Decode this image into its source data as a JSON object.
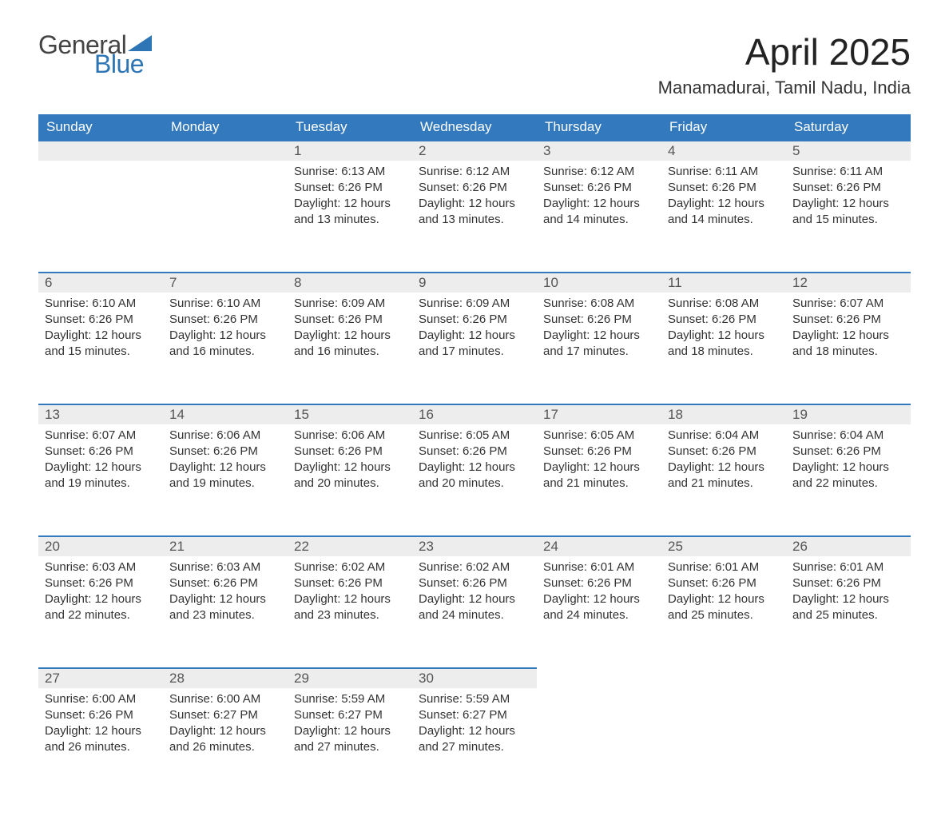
{
  "logo": {
    "word1": "General",
    "word2": "Blue"
  },
  "title": "April 2025",
  "location": "Manamadurai, Tamil Nadu, India",
  "colors": {
    "header_bg": "#3379bd",
    "header_text": "#ffffff",
    "daynum_bg": "#ededed",
    "daynum_border": "#3379bd",
    "text": "#333333",
    "logo_gray": "#444444",
    "logo_blue": "#2e75b6"
  },
  "weekdays": [
    "Sunday",
    "Monday",
    "Tuesday",
    "Wednesday",
    "Thursday",
    "Friday",
    "Saturday"
  ],
  "labels": {
    "sunrise": "Sunrise:",
    "sunset": "Sunset:",
    "daylight": "Daylight:"
  },
  "weeks": [
    [
      null,
      null,
      {
        "day": "1",
        "sunrise": "6:13 AM",
        "sunset": "6:26 PM",
        "daylight": "12 hours and 13 minutes."
      },
      {
        "day": "2",
        "sunrise": "6:12 AM",
        "sunset": "6:26 PM",
        "daylight": "12 hours and 13 minutes."
      },
      {
        "day": "3",
        "sunrise": "6:12 AM",
        "sunset": "6:26 PM",
        "daylight": "12 hours and 14 minutes."
      },
      {
        "day": "4",
        "sunrise": "6:11 AM",
        "sunset": "6:26 PM",
        "daylight": "12 hours and 14 minutes."
      },
      {
        "day": "5",
        "sunrise": "6:11 AM",
        "sunset": "6:26 PM",
        "daylight": "12 hours and 15 minutes."
      }
    ],
    [
      {
        "day": "6",
        "sunrise": "6:10 AM",
        "sunset": "6:26 PM",
        "daylight": "12 hours and 15 minutes."
      },
      {
        "day": "7",
        "sunrise": "6:10 AM",
        "sunset": "6:26 PM",
        "daylight": "12 hours and 16 minutes."
      },
      {
        "day": "8",
        "sunrise": "6:09 AM",
        "sunset": "6:26 PM",
        "daylight": "12 hours and 16 minutes."
      },
      {
        "day": "9",
        "sunrise": "6:09 AM",
        "sunset": "6:26 PM",
        "daylight": "12 hours and 17 minutes."
      },
      {
        "day": "10",
        "sunrise": "6:08 AM",
        "sunset": "6:26 PM",
        "daylight": "12 hours and 17 minutes."
      },
      {
        "day": "11",
        "sunrise": "6:08 AM",
        "sunset": "6:26 PM",
        "daylight": "12 hours and 18 minutes."
      },
      {
        "day": "12",
        "sunrise": "6:07 AM",
        "sunset": "6:26 PM",
        "daylight": "12 hours and 18 minutes."
      }
    ],
    [
      {
        "day": "13",
        "sunrise": "6:07 AM",
        "sunset": "6:26 PM",
        "daylight": "12 hours and 19 minutes."
      },
      {
        "day": "14",
        "sunrise": "6:06 AM",
        "sunset": "6:26 PM",
        "daylight": "12 hours and 19 minutes."
      },
      {
        "day": "15",
        "sunrise": "6:06 AM",
        "sunset": "6:26 PM",
        "daylight": "12 hours and 20 minutes."
      },
      {
        "day": "16",
        "sunrise": "6:05 AM",
        "sunset": "6:26 PM",
        "daylight": "12 hours and 20 minutes."
      },
      {
        "day": "17",
        "sunrise": "6:05 AM",
        "sunset": "6:26 PM",
        "daylight": "12 hours and 21 minutes."
      },
      {
        "day": "18",
        "sunrise": "6:04 AM",
        "sunset": "6:26 PM",
        "daylight": "12 hours and 21 minutes."
      },
      {
        "day": "19",
        "sunrise": "6:04 AM",
        "sunset": "6:26 PM",
        "daylight": "12 hours and 22 minutes."
      }
    ],
    [
      {
        "day": "20",
        "sunrise": "6:03 AM",
        "sunset": "6:26 PM",
        "daylight": "12 hours and 22 minutes."
      },
      {
        "day": "21",
        "sunrise": "6:03 AM",
        "sunset": "6:26 PM",
        "daylight": "12 hours and 23 minutes."
      },
      {
        "day": "22",
        "sunrise": "6:02 AM",
        "sunset": "6:26 PM",
        "daylight": "12 hours and 23 minutes."
      },
      {
        "day": "23",
        "sunrise": "6:02 AM",
        "sunset": "6:26 PM",
        "daylight": "12 hours and 24 minutes."
      },
      {
        "day": "24",
        "sunrise": "6:01 AM",
        "sunset": "6:26 PM",
        "daylight": "12 hours and 24 minutes."
      },
      {
        "day": "25",
        "sunrise": "6:01 AM",
        "sunset": "6:26 PM",
        "daylight": "12 hours and 25 minutes."
      },
      {
        "day": "26",
        "sunrise": "6:01 AM",
        "sunset": "6:26 PM",
        "daylight": "12 hours and 25 minutes."
      }
    ],
    [
      {
        "day": "27",
        "sunrise": "6:00 AM",
        "sunset": "6:26 PM",
        "daylight": "12 hours and 26 minutes."
      },
      {
        "day": "28",
        "sunrise": "6:00 AM",
        "sunset": "6:27 PM",
        "daylight": "12 hours and 26 minutes."
      },
      {
        "day": "29",
        "sunrise": "5:59 AM",
        "sunset": "6:27 PM",
        "daylight": "12 hours and 27 minutes."
      },
      {
        "day": "30",
        "sunrise": "5:59 AM",
        "sunset": "6:27 PM",
        "daylight": "12 hours and 27 minutes."
      },
      null,
      null,
      null
    ]
  ]
}
